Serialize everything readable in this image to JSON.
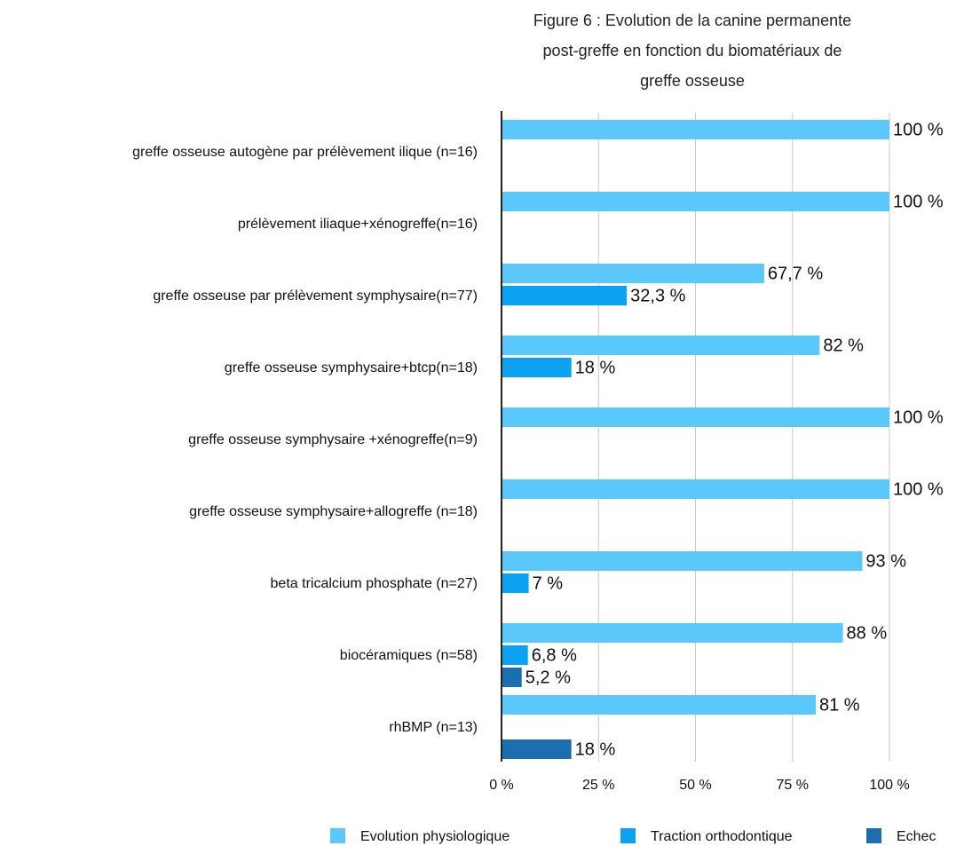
{
  "chart_data": {
    "type": "bar",
    "orientation": "horizontal",
    "title": "Figure 6 : Evolution de la canine permanente post-greffe en fonction du biomatériaux de greffe osseuse",
    "categories": [
      "greffe osseuse autogène par prélèvement ilique (n=16)",
      "prélèvement iliaque+xénogreffe(n=16)",
      "greffe osseuse par prélèvement symphysaire(n=77)",
      "greffe osseuse symphysaire+btcp(n=18)",
      "greffe osseuse symphysaire +xénogreffe(n=9)",
      "greffe osseuse symphysaire+allogreffe (n=18)",
      "beta tricalcium phosphate (n=27)",
      "biocéramiques (n=58)",
      "rhBMP (n=13)"
    ],
    "series": [
      {
        "name": "Evolution physiologique",
        "color": "#5ac8fa",
        "values": [
          100,
          100,
          67.7,
          82,
          100,
          100,
          93,
          88,
          81
        ],
        "value_labels": [
          "100 %",
          "100 %",
          "67,7 %",
          "82 %",
          "100 %",
          "100 %",
          "93 %",
          "88 %",
          "81 %"
        ]
      },
      {
        "name": "Traction orthodontique",
        "color": "#0ba2f2",
        "values": [
          null,
          null,
          32.3,
          18,
          null,
          null,
          7,
          6.8,
          null
        ],
        "value_labels": [
          null,
          null,
          "32,3 %",
          "18 %",
          null,
          null,
          "7 %",
          "6,8 %",
          null
        ]
      },
      {
        "name": "Echec",
        "color": "#1b6fb1",
        "values": [
          null,
          null,
          null,
          null,
          null,
          null,
          null,
          5.2,
          18
        ],
        "value_labels": [
          null,
          null,
          null,
          null,
          null,
          null,
          null,
          "5,2 %",
          "18 %"
        ]
      }
    ],
    "xlim": [
      0,
      100
    ],
    "xticks": [
      {
        "value": 0,
        "label": "0 %"
      },
      {
        "value": 25,
        "label": "25 %"
      },
      {
        "value": 50,
        "label": "50 %"
      },
      {
        "value": 75,
        "label": "75 %"
      },
      {
        "value": 100,
        "label": "100 %"
      }
    ],
    "grid": true,
    "legend": "bottom"
  }
}
